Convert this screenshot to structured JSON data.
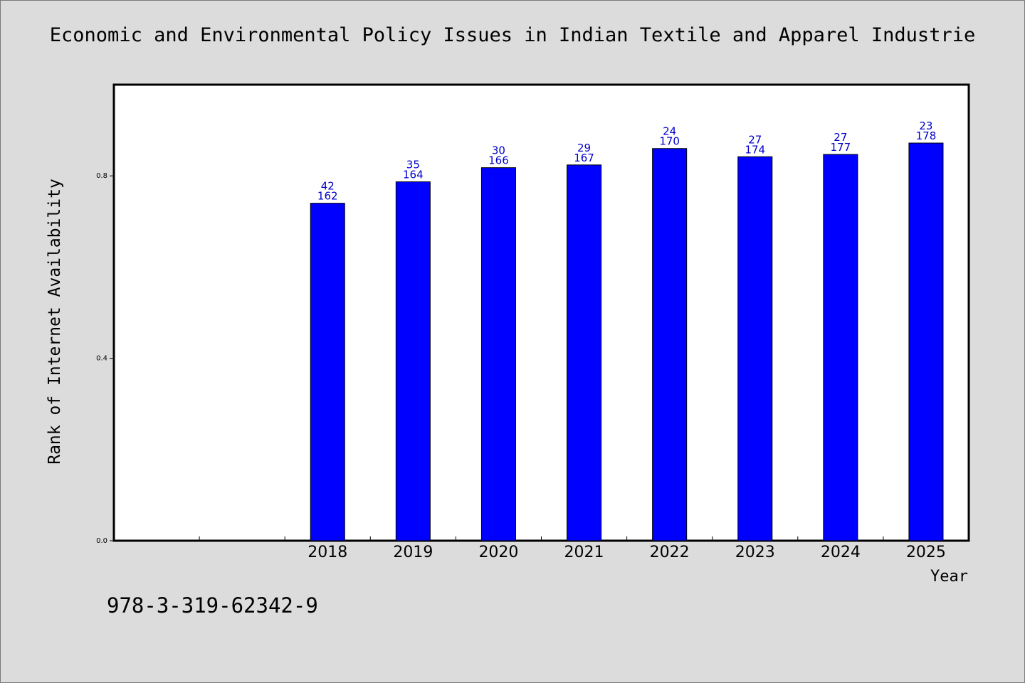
{
  "chart_data": {
    "type": "bar",
    "title": "Economic and Environmental Policy Issues in Indian Textile and Apparel Industrie",
    "xlabel": "Year",
    "ylabel": "Rank of Internet Availability",
    "categories": [
      "",
      "",
      "2018",
      "2019",
      "2020",
      "2021",
      "2022",
      "2023",
      "2024",
      "2025"
    ],
    "values": [
      null,
      null,
      0.74,
      0.787,
      0.818,
      0.824,
      0.86,
      0.842,
      0.847,
      0.872
    ],
    "data_labels_top": [
      "",
      "",
      "42",
      "35",
      "30",
      "29",
      "24",
      "27",
      "27",
      "23"
    ],
    "data_labels_bottom": [
      "",
      "",
      "162",
      "164",
      "166",
      "167",
      "170",
      "174",
      "177",
      "178"
    ],
    "ylim": [
      0,
      1.0
    ],
    "yticks": [
      0.0,
      0.4,
      0.8
    ],
    "ytick_labels": [
      "0.0",
      "0.4",
      "0.8"
    ],
    "bar_color": "#0000ff",
    "label_color": "#0000cc",
    "grid": false,
    "legend": "none"
  },
  "footer": {
    "isbn": "978-3-319-62342-9"
  }
}
